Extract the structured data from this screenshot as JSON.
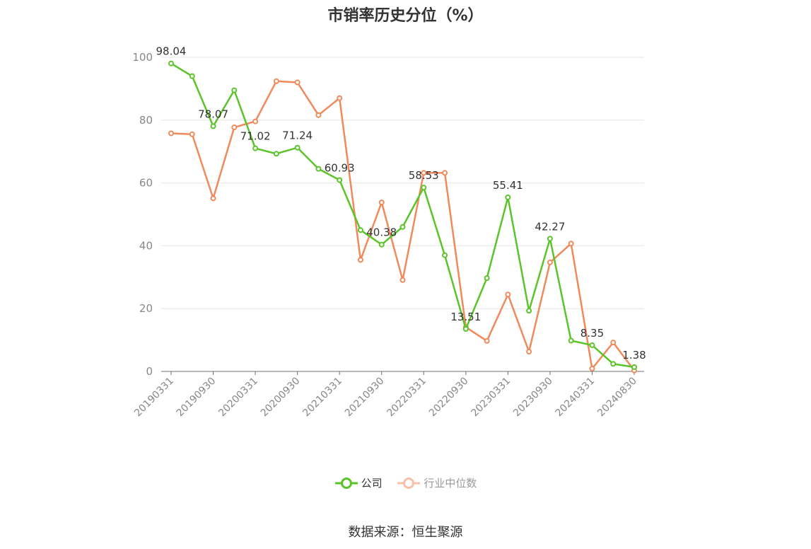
{
  "chart_data": {
    "type": "line",
    "title": "市销率历史分位（%）",
    "xlabel": "",
    "ylabel": "",
    "ylim": [
      0,
      100
    ],
    "yticks": [
      0,
      20,
      40,
      60,
      80,
      100
    ],
    "grid": true,
    "legend_position": "bottom",
    "x": [
      "20190331",
      "20190630",
      "20190930",
      "20191231",
      "20200331",
      "20200630",
      "20200930",
      "20201231",
      "20210331",
      "20210630",
      "20210930",
      "20211231",
      "20220331",
      "20220630",
      "20220930",
      "20221231",
      "20230331",
      "20230630",
      "20230930",
      "20231231",
      "20240331",
      "20240630",
      "20240830"
    ],
    "xtick_labels": [
      "20190331",
      "20190930",
      "20200331",
      "20200930",
      "20210331",
      "20210930",
      "20220331",
      "20220930",
      "20230331",
      "20230930",
      "20240331",
      "20240830"
    ],
    "series": [
      {
        "name": "公司",
        "color": "#5bc42a",
        "values": [
          98.04,
          94,
          78.07,
          89.5,
          71.02,
          69.3,
          71.24,
          64.5,
          60.93,
          45,
          40.38,
          46,
          58.53,
          37,
          13.51,
          29.7,
          55.41,
          19.3,
          42.27,
          9.8,
          8.35,
          2.4,
          1.38
        ],
        "labels": {
          "0": "98.04",
          "2": "78.07",
          "4": "71.02",
          "6": "71.24",
          "8": "60.93",
          "10": "40.38",
          "12": "58.53",
          "14": "13.51",
          "16": "55.41",
          "18": "42.27",
          "20": "8.35",
          "22": "1.38"
        }
      },
      {
        "name": "行业中位数",
        "color": "#f08a5d",
        "values": [
          75.8,
          75.5,
          55.1,
          77.7,
          79.6,
          92.4,
          92,
          81.6,
          87,
          35.5,
          53.8,
          29.1,
          63.2,
          63.2,
          14.1,
          9.7,
          24.5,
          6.3,
          34.7,
          40.7,
          0.9,
          9.2,
          0.3
        ]
      }
    ],
    "source": "数据来源：恒生聚源"
  }
}
